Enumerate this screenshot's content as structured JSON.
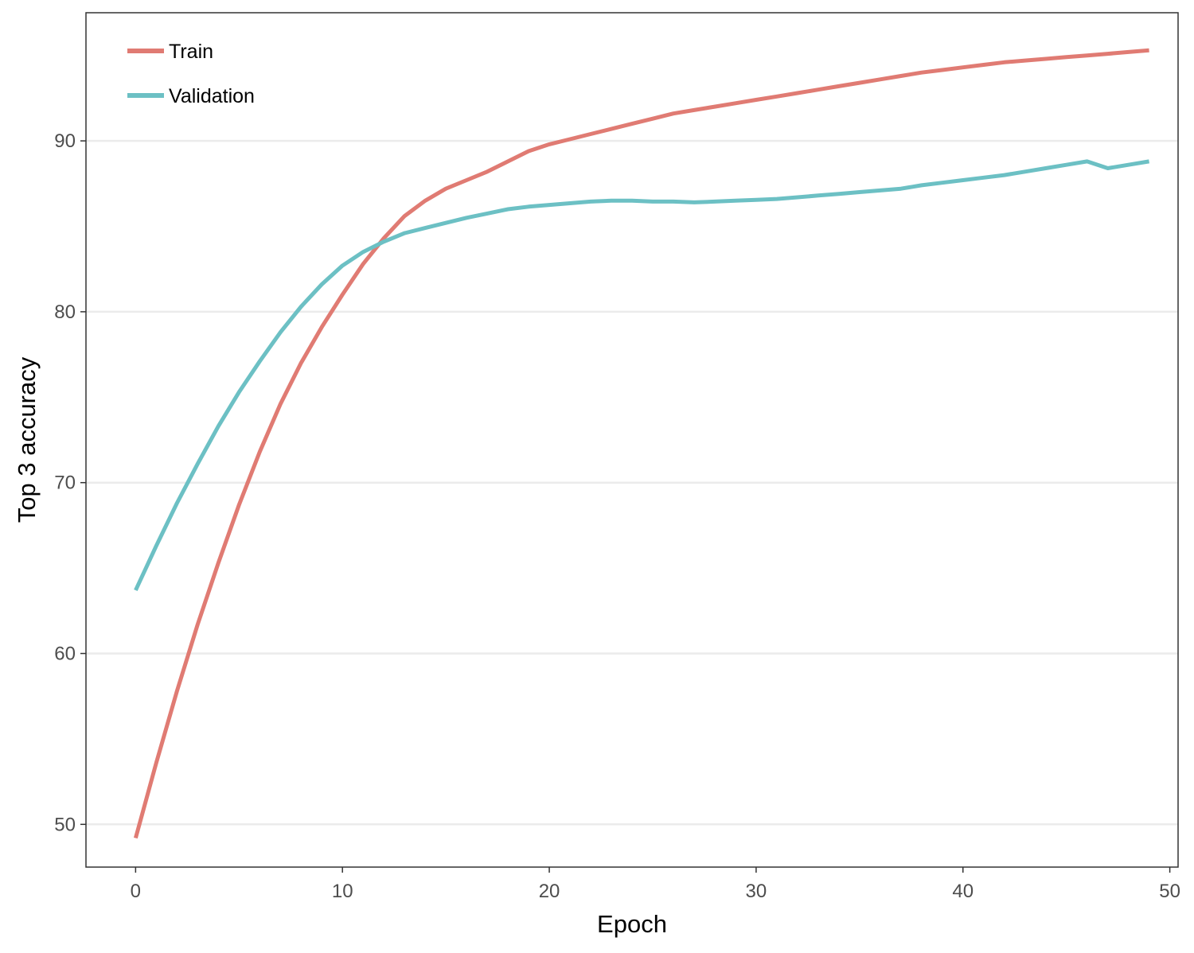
{
  "chart_data": {
    "type": "line",
    "title": "",
    "xlabel": "Epoch",
    "ylabel": "Top 3 accuracy",
    "xlim": [
      -2.4,
      50.4
    ],
    "ylim": [
      47.5,
      97.5
    ],
    "xticks": [
      0,
      10,
      20,
      30,
      40,
      50
    ],
    "yticks": [
      50,
      60,
      70,
      80,
      90
    ],
    "grid": "horizontal-major",
    "legend_position": "top-left",
    "series": [
      {
        "name": "Train",
        "color": "#e07b73",
        "x": [
          0,
          1,
          2,
          3,
          4,
          5,
          6,
          7,
          8,
          9,
          10,
          11,
          12,
          13,
          14,
          15,
          16,
          17,
          18,
          19,
          20,
          21,
          22,
          23,
          24,
          25,
          26,
          27,
          28,
          29,
          30,
          31,
          32,
          33,
          34,
          35,
          36,
          37,
          38,
          39,
          40,
          41,
          42,
          43,
          44,
          45,
          46,
          47,
          48,
          49
        ],
        "y": [
          49.2,
          53.6,
          57.8,
          61.7,
          65.3,
          68.7,
          71.8,
          74.6,
          77.0,
          79.1,
          81.0,
          82.8,
          84.3,
          85.6,
          86.5,
          87.2,
          87.7,
          88.2,
          88.8,
          89.4,
          89.8,
          90.1,
          90.4,
          90.7,
          91.0,
          91.3,
          91.6,
          91.8,
          92.0,
          92.2,
          92.4,
          92.6,
          92.8,
          93.0,
          93.2,
          93.4,
          93.6,
          93.8,
          94.0,
          94.15,
          94.3,
          94.45,
          94.6,
          94.7,
          94.8,
          94.9,
          95.0,
          95.1,
          95.2,
          95.3
        ]
      },
      {
        "name": "Validation",
        "color": "#6cc0c4",
        "x": [
          0,
          1,
          2,
          3,
          4,
          5,
          6,
          7,
          8,
          9,
          10,
          11,
          12,
          13,
          14,
          15,
          16,
          17,
          18,
          19,
          20,
          21,
          22,
          23,
          24,
          25,
          26,
          27,
          28,
          29,
          30,
          31,
          32,
          33,
          34,
          35,
          36,
          37,
          38,
          39,
          40,
          41,
          42,
          43,
          44,
          45,
          46,
          47,
          48,
          49
        ],
        "y": [
          63.7,
          66.3,
          68.8,
          71.1,
          73.3,
          75.3,
          77.1,
          78.8,
          80.3,
          81.6,
          82.7,
          83.5,
          84.1,
          84.6,
          84.9,
          85.2,
          85.5,
          85.75,
          86.0,
          86.15,
          86.25,
          86.35,
          86.45,
          86.5,
          86.5,
          86.45,
          86.45,
          86.4,
          86.45,
          86.5,
          86.55,
          86.6,
          86.7,
          86.8,
          86.9,
          87.0,
          87.1,
          87.2,
          87.4,
          87.55,
          87.7,
          87.85,
          88.0,
          88.2,
          88.4,
          88.6,
          88.8,
          88.4,
          88.6,
          88.8
        ]
      }
    ]
  }
}
